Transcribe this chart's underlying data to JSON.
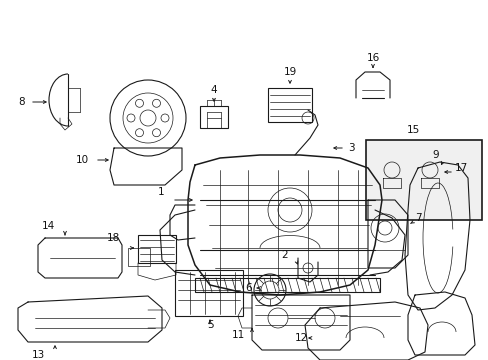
{
  "background_color": "#ffffff",
  "figsize": [
    4.89,
    3.6
  ],
  "dpi": 100,
  "image_data": ""
}
